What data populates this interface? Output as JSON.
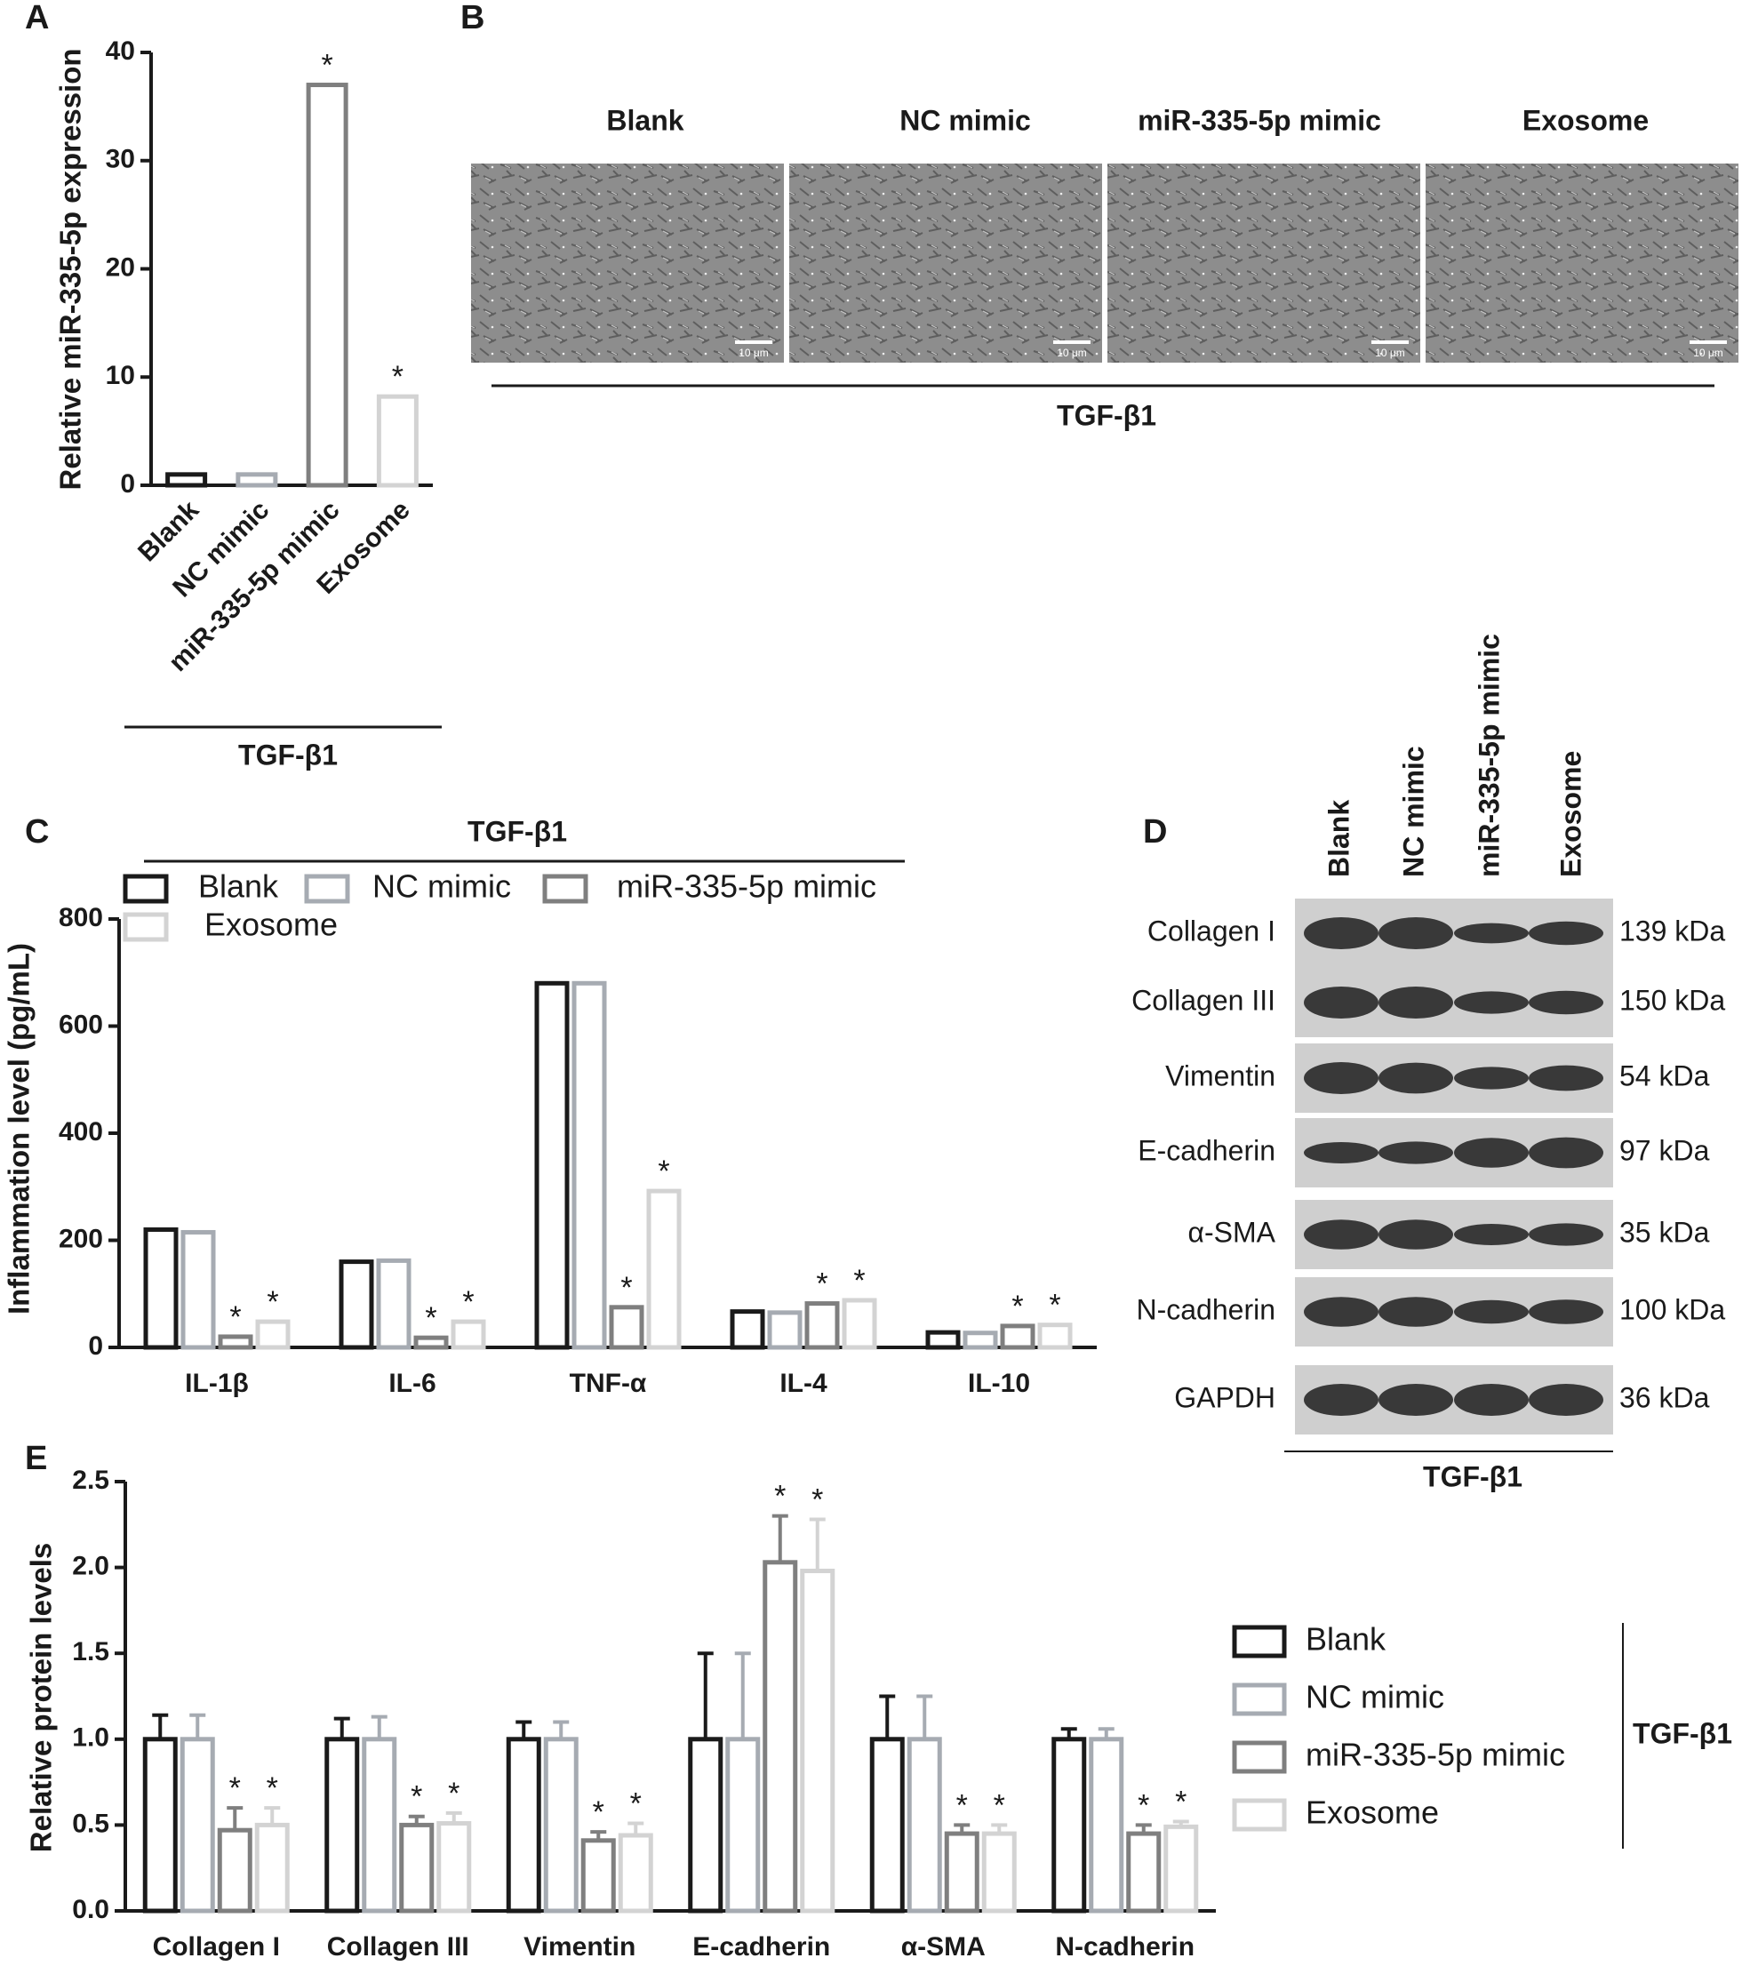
{
  "panels": [
    "A",
    "B",
    "C",
    "D",
    "E"
  ],
  "chart_data": [
    {
      "type": "bar",
      "y_label": "Relative miR-335-5p expression",
      "group_label": "TGF-β1",
      "categories": [
        "Blank",
        "NC mimic",
        "miR-335-5p mimic",
        "Exosome"
      ],
      "values": [
        1,
        1,
        37,
        8.2
      ],
      "colors": [
        "#1a1a1a",
        "#a6abb2",
        "#7f7f7f",
        "#d3d3d3"
      ],
      "significance": [
        null,
        null,
        "*",
        "*"
      ],
      "ylim": [
        0,
        40
      ],
      "yticks": [
        0,
        10,
        20,
        30,
        40
      ]
    },
    {
      "type": "bar",
      "title": "TGF-β1",
      "y_label": "Inflammation level (pg/mL)",
      "legend": "top",
      "categories": [
        "IL-1β",
        "IL-6",
        "TNF-α",
        "IL-4",
        "IL-10"
      ],
      "series": [
        {
          "name": "Blank",
          "color": "#1a1a1a",
          "values": [
            220,
            160,
            680,
            67,
            28
          ]
        },
        {
          "name": "NC mimic",
          "color": "#a6abb2",
          "values": [
            215,
            162,
            680,
            65,
            27
          ]
        },
        {
          "name": "miR-335-5p mimic",
          "color": "#7f7f7f",
          "values": [
            20,
            18,
            75,
            82,
            40
          ],
          "significance": [
            "*",
            "*",
            "*",
            "*",
            "*"
          ]
        },
        {
          "name": "Exosome",
          "color": "#d3d3d3",
          "values": [
            48,
            48,
            292,
            88,
            42
          ],
          "significance": [
            "*",
            "*",
            "*",
            "*",
            "*"
          ]
        }
      ],
      "ylim": [
        0,
        800
      ],
      "yticks": [
        0,
        200,
        400,
        600,
        800
      ]
    },
    {
      "type": "bar",
      "y_label": "Relative protein levels",
      "legend": "right",
      "group_label": "TGF-β1",
      "categories": [
        "Collagen I",
        "Collagen III",
        "Vimentin",
        "E-cadherin",
        "α-SMA",
        "N-cadherin"
      ],
      "series": [
        {
          "name": "Blank",
          "color": "#1a1a1a",
          "values": [
            1,
            1,
            1,
            1,
            1,
            1
          ],
          "errors": [
            0.14,
            0.12,
            0.1,
            0.5,
            0.25,
            0.06
          ]
        },
        {
          "name": "NC mimic",
          "color": "#a6abb2",
          "values": [
            1,
            1,
            1,
            1,
            1,
            1
          ],
          "errors": [
            0.14,
            0.13,
            0.1,
            0.5,
            0.25,
            0.06
          ]
        },
        {
          "name": "miR-335-5p mimic",
          "color": "#7f7f7f",
          "values": [
            0.47,
            0.5,
            0.41,
            2.03,
            0.45,
            0.45
          ],
          "errors": [
            0.13,
            0.05,
            0.05,
            0.27,
            0.05,
            0.05
          ],
          "significance": [
            "*",
            "*",
            "*",
            "*",
            "*",
            "*"
          ]
        },
        {
          "name": "Exosome",
          "color": "#d3d3d3",
          "values": [
            0.5,
            0.51,
            0.44,
            1.98,
            0.45,
            0.49
          ],
          "errors": [
            0.1,
            0.06,
            0.07,
            0.3,
            0.05,
            0.03
          ],
          "significance": [
            "*",
            "*",
            "*",
            "*",
            "*",
            "*"
          ]
        }
      ],
      "ylim": [
        0,
        2.5
      ],
      "yticks": [
        {
          "value": 0,
          "label": "0.0"
        },
        0.5,
        {
          "value": 1,
          "label": "1.0"
        },
        1.5,
        {
          "value": 2,
          "label": "2.0"
        },
        2.5
      ]
    }
  ],
  "microscopy": {
    "columns": [
      "Blank",
      "NC mimic",
      "miR-335-5p mimic",
      "Exosome"
    ],
    "scale_bar": "10 μm",
    "group_label": "TGF-β1"
  },
  "western_blot": {
    "lanes": [
      "Blank",
      "NC mimic",
      "miR-335-5p mimic",
      "Exosome"
    ],
    "proteins": [
      "Collagen I",
      "Collagen III",
      "Vimentin",
      "E-cadherin",
      "α-SMA",
      "N-cadherin",
      "GAPDH"
    ],
    "sizes": [
      "139 kDa",
      "150 kDa",
      "54 kDa",
      "97 kDa",
      "35 kDa",
      "100 kDa",
      "36 kDa"
    ],
    "group_label": "TGF-β1"
  }
}
